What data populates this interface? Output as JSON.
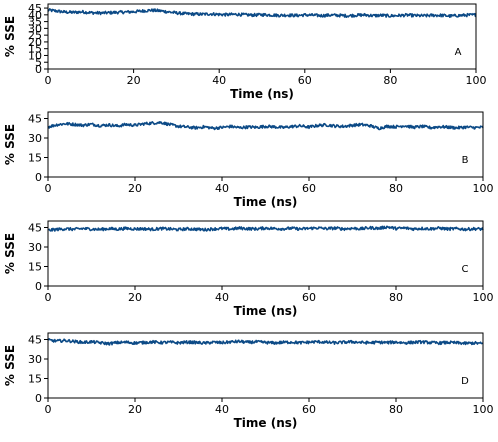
{
  "chart_data": [
    {
      "type": "line",
      "panel_label": "A",
      "xlabel": "Time (ns)",
      "ylabel": "% SSE",
      "xlim": [
        0,
        100
      ],
      "ylim": [
        0,
        48
      ],
      "xticks": [
        0,
        20,
        40,
        60,
        80,
        100
      ],
      "yticks": [
        0,
        5,
        10,
        15,
        20,
        25,
        30,
        35,
        40,
        45
      ],
      "ytick_labels": [
        "0",
        "5",
        "10",
        "15",
        "20",
        "25",
        "30",
        "35",
        "40",
        "45"
      ],
      "color": "#0c4a86",
      "series": [
        {
          "x": [
            0,
            2,
            4,
            6,
            8,
            10,
            12,
            14,
            16,
            18,
            20,
            22,
            24,
            26,
            28,
            30,
            32,
            34,
            36,
            38,
            40,
            42,
            44,
            46,
            48,
            50,
            52,
            54,
            56,
            58,
            60,
            62,
            64,
            66,
            68,
            70,
            72,
            74,
            76,
            78,
            80,
            82,
            84,
            86,
            88,
            90,
            92,
            94,
            96,
            98,
            100
          ],
          "y": [
            43.5,
            42.8,
            42.0,
            41.8,
            42.2,
            41.6,
            41.3,
            41.5,
            41.8,
            42.0,
            42.3,
            42.8,
            43.4,
            43.0,
            42.2,
            41.4,
            40.8,
            40.6,
            40.4,
            40.7,
            40.3,
            40.1,
            40.4,
            40.0,
            39.8,
            40.1,
            39.9,
            39.6,
            39.8,
            39.5,
            39.9,
            39.7,
            39.4,
            39.8,
            39.6,
            39.3,
            39.7,
            39.9,
            39.4,
            39.6,
            39.2,
            39.5,
            39.8,
            39.4,
            39.3,
            39.7,
            39.6,
            39.1,
            39.5,
            39.8,
            40.0
          ]
        }
      ]
    },
    {
      "type": "line",
      "panel_label": "B",
      "xlabel": "Time (ns)",
      "ylabel": "% SSE",
      "xlim": [
        0,
        100
      ],
      "ylim": [
        0,
        50
      ],
      "xticks": [
        0,
        20,
        40,
        60,
        80,
        100
      ],
      "yticks": [
        0,
        15,
        30,
        45
      ],
      "ytick_labels": [
        "0",
        "15",
        "30",
        "45"
      ],
      "color": "#0c4a86",
      "series": [
        {
          "x": [
            0,
            2,
            4,
            6,
            8,
            10,
            12,
            14,
            16,
            18,
            20,
            22,
            24,
            26,
            28,
            30,
            32,
            34,
            36,
            38,
            40,
            42,
            44,
            46,
            48,
            50,
            52,
            54,
            56,
            58,
            60,
            62,
            64,
            66,
            68,
            70,
            72,
            74,
            76,
            78,
            80,
            82,
            84,
            86,
            88,
            90,
            92,
            94,
            96,
            98,
            100
          ],
          "y": [
            38.5,
            40.2,
            41.0,
            40.5,
            39.8,
            40.6,
            39.5,
            40.1,
            39.2,
            40.4,
            39.8,
            40.9,
            41.5,
            42.0,
            40.3,
            39.0,
            38.4,
            37.8,
            38.6,
            37.5,
            38.1,
            38.9,
            37.9,
            38.5,
            38.2,
            39.0,
            38.6,
            38.0,
            38.8,
            39.3,
            38.4,
            39.6,
            40.1,
            39.2,
            38.9,
            39.8,
            40.3,
            39.5,
            37.4,
            39.0,
            38.6,
            39.5,
            38.2,
            38.9,
            37.9,
            38.7,
            38.3,
            37.8,
            38.4,
            38.0,
            38.2
          ]
        }
      ]
    },
    {
      "type": "line",
      "panel_label": "C",
      "xlabel": "Time (ns)",
      "ylabel": "% SSE",
      "xlim": [
        0,
        100
      ],
      "ylim": [
        0,
        50
      ],
      "xticks": [
        0,
        20,
        40,
        60,
        80,
        100
      ],
      "yticks": [
        0,
        15,
        30,
        45
      ],
      "ytick_labels": [
        "0",
        "15",
        "30",
        "45"
      ],
      "color": "#0c4a86",
      "series": [
        {
          "x": [
            0,
            2,
            4,
            6,
            8,
            10,
            12,
            14,
            16,
            18,
            20,
            22,
            24,
            26,
            28,
            30,
            32,
            34,
            36,
            38,
            40,
            42,
            44,
            46,
            48,
            50,
            52,
            54,
            56,
            58,
            60,
            62,
            64,
            66,
            68,
            70,
            72,
            74,
            76,
            78,
            80,
            82,
            84,
            86,
            88,
            90,
            92,
            94,
            96,
            98,
            100
          ],
          "y": [
            42.8,
            43.5,
            44.0,
            43.6,
            44.2,
            43.8,
            43.5,
            44.1,
            43.7,
            44.3,
            43.9,
            44.0,
            43.6,
            44.2,
            43.8,
            43.4,
            44.0,
            43.7,
            43.3,
            43.9,
            44.2,
            43.8,
            44.5,
            44.1,
            43.9,
            44.6,
            44.2,
            44.0,
            44.4,
            43.8,
            44.3,
            44.7,
            44.1,
            44.5,
            43.9,
            44.4,
            44.0,
            44.8,
            44.3,
            45.5,
            44.2,
            44.6,
            43.9,
            44.3,
            44.0,
            44.5,
            43.8,
            44.1,
            43.6,
            44.0,
            43.8
          ]
        }
      ]
    },
    {
      "type": "line",
      "panel_label": "D",
      "xlabel": "Time (ns)",
      "ylabel": "% SSE",
      "xlim": [
        0,
        100
      ],
      "ylim": [
        0,
        50
      ],
      "xticks": [
        0,
        20,
        40,
        60,
        80,
        100
      ],
      "yticks": [
        0,
        15,
        30,
        45
      ],
      "ytick_labels": [
        "0",
        "15",
        "30",
        "45"
      ],
      "color": "#0c4a86",
      "series": [
        {
          "x": [
            0,
            2,
            4,
            6,
            8,
            10,
            12,
            14,
            16,
            18,
            20,
            22,
            24,
            26,
            28,
            30,
            32,
            34,
            36,
            38,
            40,
            42,
            44,
            46,
            48,
            50,
            52,
            54,
            56,
            58,
            60,
            62,
            64,
            66,
            68,
            70,
            72,
            74,
            76,
            78,
            80,
            82,
            84,
            86,
            88,
            90,
            92,
            94,
            96,
            98,
            100
          ],
          "y": [
            44.5,
            43.8,
            44.2,
            43.5,
            42.8,
            43.2,
            42.5,
            41.8,
            42.6,
            42.9,
            42.3,
            42.7,
            43.1,
            42.6,
            42.9,
            42.4,
            43.0,
            42.7,
            42.2,
            42.9,
            42.5,
            43.1,
            43.5,
            42.8,
            43.2,
            42.7,
            42.3,
            42.8,
            43.0,
            42.5,
            42.9,
            43.3,
            42.8,
            42.4,
            42.9,
            43.2,
            42.7,
            42.5,
            42.9,
            42.6,
            43.0,
            42.4,
            42.8,
            43.1,
            42.6,
            42.3,
            42.7,
            42.4,
            42.0,
            42.3,
            41.8
          ]
        }
      ]
    }
  ]
}
